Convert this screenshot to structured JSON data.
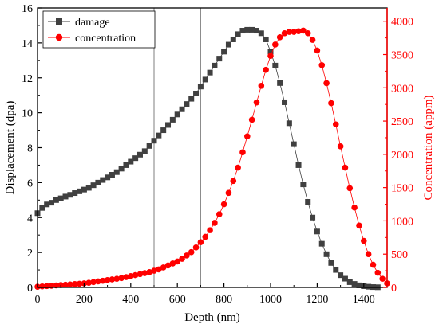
{
  "chart_data": {
    "type": "scatter",
    "title": "",
    "xlabel": "Depth (nm)",
    "ylabel_left": "Displacement (dpa)",
    "ylabel_right": "Concentration (appm)",
    "xlim": [
      0,
      1500
    ],
    "ylim_left": [
      0,
      16
    ],
    "ylim_right": [
      0,
      4200
    ],
    "xticks": [
      0,
      200,
      400,
      600,
      800,
      1000,
      1200,
      1400
    ],
    "yticks_left": [
      0,
      2,
      4,
      6,
      8,
      10,
      12,
      14,
      16
    ],
    "yticks_right": [
      0,
      500,
      1000,
      1500,
      2000,
      2500,
      3000,
      3500,
      4000
    ],
    "grid": false,
    "legend_position": "top-left",
    "vlines": [
      500,
      700
    ],
    "colors": {
      "damage": "#404040",
      "concentration": "#ff0000",
      "right_axis": "#ff0000",
      "left_axis": "#000000",
      "vline": "#7f7f7f"
    },
    "series": [
      {
        "name": "damage",
        "axis": "left",
        "marker": "square",
        "x": [
          0,
          20,
          40,
          60,
          80,
          100,
          120,
          140,
          160,
          180,
          200,
          220,
          240,
          260,
          280,
          300,
          320,
          340,
          360,
          380,
          400,
          420,
          440,
          460,
          480,
          500,
          520,
          540,
          560,
          580,
          600,
          620,
          640,
          660,
          680,
          700,
          720,
          740,
          760,
          780,
          800,
          820,
          840,
          860,
          880,
          900,
          920,
          940,
          960,
          980,
          1000,
          1020,
          1040,
          1060,
          1080,
          1100,
          1120,
          1140,
          1160,
          1180,
          1200,
          1220,
          1240,
          1260,
          1280,
          1300,
          1320,
          1340,
          1360,
          1380,
          1400,
          1420,
          1440,
          1460
        ],
        "y": [
          4.25,
          4.55,
          4.75,
          4.85,
          5.0,
          5.1,
          5.2,
          5.3,
          5.4,
          5.5,
          5.6,
          5.7,
          5.85,
          6.0,
          6.15,
          6.3,
          6.45,
          6.6,
          6.8,
          7.0,
          7.2,
          7.4,
          7.6,
          7.8,
          8.1,
          8.4,
          8.7,
          9.0,
          9.3,
          9.6,
          9.9,
          10.2,
          10.5,
          10.8,
          11.1,
          11.5,
          11.9,
          12.3,
          12.7,
          13.1,
          13.5,
          13.9,
          14.2,
          14.5,
          14.7,
          14.75,
          14.75,
          14.7,
          14.55,
          14.2,
          13.5,
          12.7,
          11.7,
          10.6,
          9.4,
          8.2,
          7.0,
          5.9,
          4.9,
          4.0,
          3.2,
          2.5,
          1.9,
          1.4,
          1.0,
          0.7,
          0.5,
          0.3,
          0.2,
          0.12,
          0.07,
          0.04,
          0.02,
          0.01
        ]
      },
      {
        "name": "concentration",
        "axis": "right",
        "marker": "circle",
        "x": [
          0,
          20,
          40,
          60,
          80,
          100,
          120,
          140,
          160,
          180,
          200,
          220,
          240,
          260,
          280,
          300,
          320,
          340,
          360,
          380,
          400,
          420,
          440,
          460,
          480,
          500,
          520,
          540,
          560,
          580,
          600,
          620,
          640,
          660,
          680,
          700,
          720,
          740,
          760,
          780,
          800,
          820,
          840,
          860,
          880,
          900,
          920,
          940,
          960,
          980,
          1000,
          1020,
          1040,
          1060,
          1080,
          1100,
          1120,
          1140,
          1160,
          1180,
          1200,
          1220,
          1240,
          1260,
          1280,
          1300,
          1320,
          1340,
          1360,
          1380,
          1400,
          1420,
          1440,
          1460,
          1480,
          1500
        ],
        "y": [
          10,
          15,
          20,
          25,
          30,
          35,
          40,
          45,
          50,
          55,
          60,
          70,
          80,
          90,
          100,
          110,
          120,
          130,
          140,
          155,
          170,
          185,
          200,
          215,
          230,
          250,
          270,
          300,
          330,
          360,
          390,
          430,
          480,
          530,
          600,
          680,
          760,
          860,
          970,
          1100,
          1250,
          1420,
          1600,
          1800,
          2030,
          2270,
          2520,
          2780,
          3030,
          3270,
          3480,
          3650,
          3760,
          3820,
          3840,
          3840,
          3850,
          3860,
          3820,
          3720,
          3560,
          3340,
          3070,
          2770,
          2450,
          2120,
          1800,
          1490,
          1200,
          930,
          700,
          500,
          340,
          220,
          130,
          60
        ]
      }
    ]
  }
}
